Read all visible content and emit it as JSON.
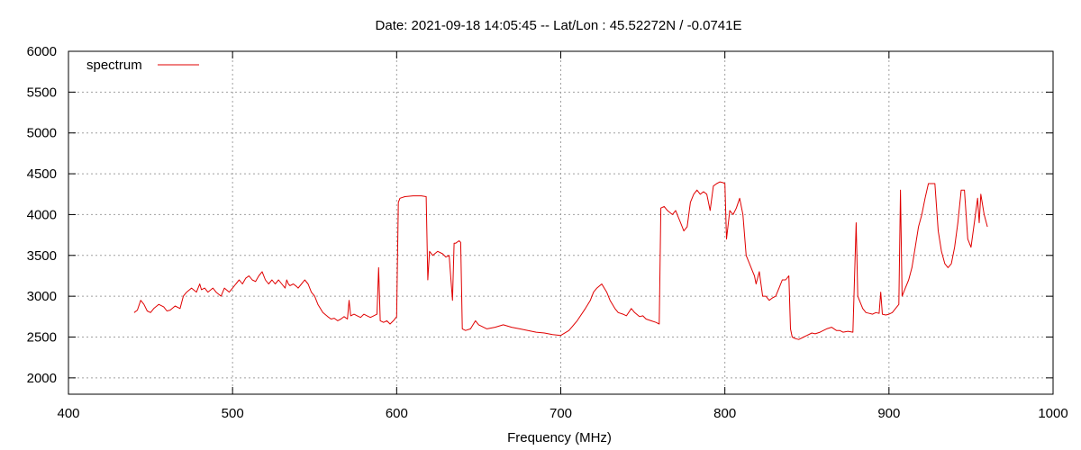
{
  "chart_data": {
    "type": "line",
    "title": "Date: 2021-09-18 14:05:45  --  Lat/Lon : 45.52272N / -0.0741E",
    "xlabel": "Frequency (MHz)",
    "ylabel": "",
    "xlim": [
      400,
      1000
    ],
    "ylim": [
      1800,
      6000
    ],
    "xticks": [
      400,
      500,
      600,
      700,
      800,
      900,
      1000
    ],
    "yticks": [
      2000,
      2500,
      3000,
      3500,
      4000,
      4500,
      5000,
      5500,
      6000
    ],
    "grid": true,
    "legend_position": "top-left",
    "series": [
      {
        "name": "spectrum",
        "color": "#e00000",
        "x": [
          440,
          442,
          444,
          446,
          448,
          450,
          452,
          455,
          458,
          460,
          462,
          465,
          468,
          470,
          472,
          475,
          478,
          480,
          481,
          483,
          485,
          488,
          490,
          493,
          495,
          498,
          500,
          502,
          504,
          506,
          508,
          510,
          512,
          514,
          516,
          518,
          520,
          522,
          524,
          526,
          528,
          530,
          532,
          533,
          534,
          535,
          537,
          539,
          540,
          542,
          544,
          546,
          548,
          550,
          552,
          555,
          558,
          560,
          562,
          564,
          566,
          568,
          570,
          571,
          572,
          574,
          576,
          578,
          580,
          582,
          584,
          586,
          588,
          589,
          590,
          592,
          594,
          596,
          598,
          600,
          601,
          602,
          605,
          610,
          615,
          618,
          619,
          620,
          622,
          625,
          628,
          630,
          632,
          634,
          635,
          636,
          638,
          639,
          640,
          642,
          645,
          648,
          650,
          655,
          660,
          665,
          670,
          675,
          680,
          685,
          690,
          695,
          700,
          705,
          710,
          715,
          718,
          720,
          722,
          725,
          728,
          730,
          733,
          735,
          738,
          740,
          743,
          745,
          748,
          750,
          752,
          755,
          758,
          760,
          761,
          763,
          765,
          768,
          770,
          773,
          775,
          777,
          779,
          781,
          783,
          785,
          787,
          789,
          791,
          793,
          795,
          797,
          799,
          800,
          801,
          803,
          805,
          807,
          809,
          811,
          813,
          815,
          817,
          818,
          819,
          821,
          823,
          825,
          827,
          829,
          831,
          833,
          835,
          837,
          839,
          840,
          841,
          843,
          845,
          848,
          850,
          853,
          855,
          858,
          860,
          862,
          865,
          868,
          870,
          872,
          875,
          878,
          880,
          881,
          882,
          884,
          886,
          888,
          890,
          892,
          894,
          895,
          896,
          898,
          900,
          902,
          904,
          906,
          907,
          908,
          910,
          912,
          914,
          916,
          918,
          920,
          922,
          924,
          926,
          927,
          928,
          930,
          932,
          934,
          936,
          938,
          940,
          942,
          944,
          945,
          946,
          948,
          950,
          952,
          954,
          955,
          956,
          958,
          960
        ],
        "values": [
          2800,
          2830,
          2950,
          2900,
          2820,
          2800,
          2850,
          2900,
          2870,
          2820,
          2830,
          2880,
          2850,
          3000,
          3050,
          3100,
          3050,
          3150,
          3080,
          3100,
          3050,
          3100,
          3050,
          3000,
          3100,
          3050,
          3100,
          3150,
          3200,
          3150,
          3220,
          3250,
          3200,
          3180,
          3250,
          3300,
          3200,
          3150,
          3200,
          3150,
          3200,
          3150,
          3100,
          3200,
          3150,
          3130,
          3150,
          3120,
          3100,
          3150,
          3200,
          3150,
          3050,
          3000,
          2900,
          2800,
          2750,
          2720,
          2730,
          2700,
          2720,
          2750,
          2720,
          2950,
          2760,
          2780,
          2760,
          2740,
          2780,
          2760,
          2740,
          2760,
          2780,
          3350,
          2700,
          2680,
          2700,
          2660,
          2700,
          2750,
          4150,
          4200,
          4220,
          4230,
          4230,
          4220,
          3200,
          3550,
          3500,
          3550,
          3520,
          3480,
          3500,
          2950,
          3650,
          3650,
          3680,
          3660,
          2600,
          2580,
          2600,
          2700,
          2650,
          2600,
          2620,
          2650,
          2620,
          2600,
          2580,
          2560,
          2550,
          2530,
          2520,
          2580,
          2700,
          2850,
          2950,
          3050,
          3100,
          3150,
          3050,
          2950,
          2850,
          2800,
          2780,
          2760,
          2850,
          2800,
          2750,
          2760,
          2720,
          2700,
          2680,
          2660,
          4080,
          4100,
          4050,
          4000,
          4050,
          3900,
          3800,
          3850,
          4150,
          4250,
          4300,
          4250,
          4280,
          4250,
          4050,
          4350,
          4380,
          4400,
          4390,
          4380,
          3700,
          4050,
          4000,
          4080,
          4200,
          4000,
          3500,
          3400,
          3300,
          3250,
          3150,
          3300,
          3000,
          3000,
          2950,
          2980,
          3000,
          3100,
          3200,
          3200,
          3250,
          2600,
          2500,
          2480,
          2470,
          2500,
          2520,
          2550,
          2540,
          2560,
          2580,
          2600,
          2620,
          2580,
          2580,
          2560,
          2570,
          2560,
          3900,
          3000,
          2950,
          2850,
          2800,
          2790,
          2780,
          2800,
          2790,
          3050,
          2780,
          2770,
          2780,
          2800,
          2850,
          2900,
          4300,
          3000,
          3100,
          3200,
          3350,
          3600,
          3850,
          4000,
          4200,
          4380,
          4380,
          4380,
          4380,
          3800,
          3550,
          3400,
          3350,
          3400,
          3600,
          3900,
          4300,
          4300,
          4300,
          3700,
          3600,
          3900,
          4200,
          3900,
          4250,
          4000,
          3850
        ]
      }
    ]
  }
}
